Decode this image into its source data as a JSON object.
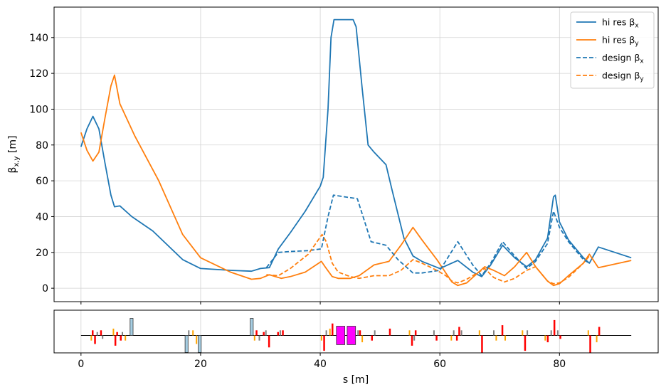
{
  "chart_data": {
    "type": "line",
    "xlabel": "s [m]",
    "ylabel": "β",
    "ylabel_sub": "x,y",
    "ylabel_unit": " [m]",
    "xlim": [
      -4.5,
      96.5
    ],
    "ylim": [
      -7.5,
      157
    ],
    "xticks": [
      0,
      20,
      40,
      60,
      80
    ],
    "yticks": [
      0,
      20,
      40,
      60,
      80,
      100,
      120,
      140
    ],
    "grid": true,
    "legend_position": "top-right",
    "series": [
      {
        "name": "hi res β",
        "name_sub": "x",
        "color": "#1f77b4",
        "dash": "solid",
        "x": [
          0,
          1,
          2,
          3,
          4,
          5,
          5.6,
          6.5,
          8.5,
          12,
          17,
          20,
          25,
          28.5,
          30,
          31.5,
          33,
          35,
          37.5,
          40,
          40.5,
          41.3,
          41.8,
          42.3,
          45.5,
          46,
          47,
          48,
          49,
          51,
          52,
          54,
          55.5,
          57,
          60,
          63,
          65.5,
          67,
          68.5,
          70.5,
          72.5,
          74.5,
          76,
          78,
          79,
          79.3,
          80,
          81.5,
          84,
          85,
          86.5,
          92
        ],
        "y": [
          79,
          89,
          96,
          89,
          70,
          52,
          45.5,
          46,
          40,
          32,
          16,
          11,
          10,
          9.5,
          11,
          11.5,
          22,
          31,
          43,
          57,
          62,
          100,
          140,
          150,
          150,
          146,
          112,
          80,
          76,
          69,
          55,
          28,
          18,
          15,
          11,
          15.5,
          9,
          6.5,
          13,
          24,
          17,
          12,
          16,
          28,
          51,
          52,
          37,
          27,
          17,
          14,
          23,
          17
        ]
      },
      {
        "name": "hi res β",
        "name_sub": "y",
        "color": "#ff7f0e",
        "dash": "solid",
        "x": [
          0,
          1,
          2,
          3,
          4,
          5,
          5.6,
          6.5,
          9,
          13,
          17,
          20,
          25,
          28.5,
          30,
          31.5,
          32.5,
          33.5,
          35,
          37.5,
          40.2,
          40.8,
          42,
          43,
          45,
          46.5,
          49,
          51.5,
          53.5,
          55.5,
          57,
          59.5,
          61,
          62,
          63,
          64.5,
          66.5,
          67.5,
          69,
          70.8,
          72.5,
          74.5,
          76,
          78,
          79,
          80,
          81.5,
          84,
          85,
          86.5,
          92
        ],
        "y": [
          87,
          77,
          71,
          76,
          95,
          113,
          119,
          103,
          85,
          60,
          30,
          17,
          9,
          5,
          5.5,
          7.5,
          6.5,
          5.5,
          6.5,
          9,
          15,
          12,
          6.5,
          5.5,
          5.5,
          7,
          13,
          15,
          24,
          34,
          27,
          16,
          8.5,
          3.5,
          1.5,
          3,
          9,
          12,
          10,
          7,
          12,
          20,
          12,
          4,
          1.5,
          2.5,
          7,
          14,
          19,
          11.5,
          15.5
        ]
      },
      {
        "name": "design β",
        "name_sub": "x",
        "color": "#1f77b4",
        "dash": "dashed",
        "x": [
          31,
          33,
          35,
          38,
          40.2,
          41.3,
          42.2,
          46.2,
          48.5,
          51,
          53,
          55.5,
          57,
          60,
          63,
          65.5,
          67,
          68.5,
          70.5,
          72.5,
          74.5,
          76,
          78,
          79,
          80,
          81.5,
          84,
          85
        ],
        "y": [
          11.5,
          20,
          20.5,
          21,
          22,
          40,
          52,
          50,
          26,
          24,
          16,
          8.5,
          8.5,
          10,
          26,
          13,
          7,
          14,
          26,
          18,
          11,
          15,
          25,
          43,
          34,
          26,
          16,
          14
        ]
      },
      {
        "name": "design β",
        "name_sub": "y",
        "color": "#ff7f0e",
        "dash": "dashed",
        "x": [
          31,
          33,
          35,
          38,
          40.3,
          41,
          42,
          43,
          45,
          46.5,
          49,
          51.5,
          53.5,
          55.5,
          57,
          59.5,
          61,
          62,
          63,
          64.5,
          66.5,
          67.5,
          69,
          70.8,
          72.5,
          74.5,
          76,
          78,
          79,
          80,
          81.5,
          84,
          85
        ],
        "y": [
          7.5,
          7,
          11,
          19,
          30,
          26,
          14,
          9,
          6.5,
          5.5,
          7,
          7,
          10,
          16,
          14,
          10,
          7,
          4,
          3,
          5,
          9,
          11,
          6,
          3.5,
          5.5,
          10,
          12,
          4,
          2.5,
          3,
          6,
          14,
          18
        ]
      }
    ],
    "lattice": {
      "beamline": {
        "x_start": 0,
        "x_end": 92
      },
      "elements": [
        {
          "x": 1.8,
          "w": 0.3,
          "h": 0.3,
          "color": "#ff0000"
        },
        {
          "x": 2.2,
          "w": 0.3,
          "h": -0.5,
          "color": "#ff0000"
        },
        {
          "x": 1.6,
          "w": 0.2,
          "h": -0.3,
          "color": "#ffa500"
        },
        {
          "x": 2.6,
          "w": 0.2,
          "h": 0.2,
          "color": "#808080"
        },
        {
          "x": 3.2,
          "w": 0.3,
          "h": 0.3,
          "color": "#ff0000"
        },
        {
          "x": 3.5,
          "w": 0.2,
          "h": -0.2,
          "color": "#808080"
        },
        {
          "x": 5.3,
          "w": 0.2,
          "h": 0.4,
          "color": "#ffa500"
        },
        {
          "x": 5.6,
          "w": 0.3,
          "h": -0.6,
          "color": "#ff0000"
        },
        {
          "x": 5.9,
          "w": 0.3,
          "h": 0.2,
          "color": "#ff0000"
        },
        {
          "x": 6.5,
          "w": 0.3,
          "h": -0.3,
          "color": "#ff0000"
        },
        {
          "x": 6.8,
          "w": 0.2,
          "h": 0.2,
          "color": "#808080"
        },
        {
          "x": 7.3,
          "w": 0.2,
          "h": -0.3,
          "color": "#ffa500"
        },
        {
          "x": 8.2,
          "w": 0.5,
          "h": 1.0,
          "color": "#a6cee3"
        },
        {
          "x": 17.4,
          "w": 0.5,
          "h": -1.0,
          "color": "#a6cee3"
        },
        {
          "x": 17.9,
          "w": 0.2,
          "h": 0.3,
          "color": "#808080"
        },
        {
          "x": 18.6,
          "w": 0.2,
          "h": 0.3,
          "color": "#ffa500"
        },
        {
          "x": 19.2,
          "w": 0.2,
          "h": -0.5,
          "color": "#ffa500"
        },
        {
          "x": 19.6,
          "w": 0.5,
          "h": -1.0,
          "color": "#a6cee3"
        },
        {
          "x": 28.3,
          "w": 0.5,
          "h": 1.0,
          "color": "#a6cee3"
        },
        {
          "x": 28.9,
          "w": 0.2,
          "h": -0.3,
          "color": "#ffa500"
        },
        {
          "x": 29.2,
          "w": 0.3,
          "h": 0.3,
          "color": "#ff0000"
        },
        {
          "x": 29.7,
          "w": 0.2,
          "h": -0.3,
          "color": "#808080"
        },
        {
          "x": 30.4,
          "w": 0.3,
          "h": 0.2,
          "color": "#ff0000"
        },
        {
          "x": 30.8,
          "w": 0.2,
          "h": 0.3,
          "color": "#808080"
        },
        {
          "x": 31.3,
          "w": 0.3,
          "h": -0.7,
          "color": "#ff0000"
        },
        {
          "x": 32.8,
          "w": 0.3,
          "h": 0.2,
          "color": "#ff0000"
        },
        {
          "x": 33.2,
          "w": 0.2,
          "h": 0.3,
          "color": "#808080"
        },
        {
          "x": 33.6,
          "w": 0.3,
          "h": 0.3,
          "color": "#ff0000"
        },
        {
          "x": 40.1,
          "w": 0.2,
          "h": -0.3,
          "color": "#ffa500"
        },
        {
          "x": 40.5,
          "w": 0.3,
          "h": -0.9,
          "color": "#ff0000"
        },
        {
          "x": 40.9,
          "w": 0.2,
          "h": 0.3,
          "color": "#808080"
        },
        {
          "x": 41.5,
          "w": 0.2,
          "h": 0.4,
          "color": "#ffa500"
        },
        {
          "x": 41.9,
          "w": 0.3,
          "h": 0.7,
          "color": "#ff0000"
        },
        {
          "x": 42.7,
          "w": 1.4,
          "h": 0.9,
          "color": "#ff00ff",
          "center": true
        },
        {
          "x": 44.5,
          "w": 1.4,
          "h": 0.9,
          "color": "#ff00ff",
          "center": true
        },
        {
          "x": 46.2,
          "w": 0.2,
          "h": 0.3,
          "color": "#808080"
        },
        {
          "x": 46.5,
          "w": 0.3,
          "h": 0.3,
          "color": "#ff0000"
        },
        {
          "x": 46.9,
          "w": 0.2,
          "h": -0.4,
          "color": "#ffa500"
        },
        {
          "x": 48.5,
          "w": 0.3,
          "h": -0.3,
          "color": "#ff0000"
        },
        {
          "x": 49.0,
          "w": 0.2,
          "h": 0.3,
          "color": "#808080"
        },
        {
          "x": 51.5,
          "w": 0.3,
          "h": 0.4,
          "color": "#ff0000"
        },
        {
          "x": 54.8,
          "w": 0.2,
          "h": 0.3,
          "color": "#ffa500"
        },
        {
          "x": 55.2,
          "w": 0.3,
          "h": -0.6,
          "color": "#ff0000"
        },
        {
          "x": 55.6,
          "w": 0.2,
          "h": -0.3,
          "color": "#808080"
        },
        {
          "x": 55.8,
          "w": 0.3,
          "h": 0.3,
          "color": "#ff0000"
        },
        {
          "x": 58.9,
          "w": 0.2,
          "h": 0.3,
          "color": "#808080"
        },
        {
          "x": 59.3,
          "w": 0.3,
          "h": -0.3,
          "color": "#ff0000"
        },
        {
          "x": 61.8,
          "w": 0.2,
          "h": -0.3,
          "color": "#ffa500"
        },
        {
          "x": 62.2,
          "w": 0.2,
          "h": 0.3,
          "color": "#808080"
        },
        {
          "x": 62.7,
          "w": 0.3,
          "h": -0.3,
          "color": "#ff0000"
        },
        {
          "x": 63.1,
          "w": 0.3,
          "h": 0.5,
          "color": "#ff0000"
        },
        {
          "x": 63.5,
          "w": 0.2,
          "h": 0.3,
          "color": "#808080"
        },
        {
          "x": 66.5,
          "w": 0.2,
          "h": 0.3,
          "color": "#ffa500"
        },
        {
          "x": 66.9,
          "w": 0.3,
          "h": -1.0,
          "color": "#ff0000"
        },
        {
          "x": 68.9,
          "w": 0.2,
          "h": 0.3,
          "color": "#808080"
        },
        {
          "x": 69.3,
          "w": 0.2,
          "h": -0.3,
          "color": "#ffa500"
        },
        {
          "x": 70.3,
          "w": 0.3,
          "h": 0.6,
          "color": "#ff0000"
        },
        {
          "x": 70.8,
          "w": 0.2,
          "h": -0.3,
          "color": "#ffa500"
        },
        {
          "x": 73.7,
          "w": 0.2,
          "h": 0.3,
          "color": "#ffa500"
        },
        {
          "x": 74.1,
          "w": 0.3,
          "h": -0.9,
          "color": "#ff0000"
        },
        {
          "x": 74.5,
          "w": 0.2,
          "h": 0.3,
          "color": "#808080"
        },
        {
          "x": 77.5,
          "w": 0.2,
          "h": -0.3,
          "color": "#ffa500"
        },
        {
          "x": 77.9,
          "w": 0.3,
          "h": -0.4,
          "color": "#ff0000"
        },
        {
          "x": 78.5,
          "w": 0.2,
          "h": 0.3,
          "color": "#808080"
        },
        {
          "x": 79.0,
          "w": 0.3,
          "h": 0.9,
          "color": "#ff0000"
        },
        {
          "x": 79.6,
          "w": 0.2,
          "h": 0.3,
          "color": "#808080"
        },
        {
          "x": 80.0,
          "w": 0.3,
          "h": -0.2,
          "color": "#ff0000"
        },
        {
          "x": 84.7,
          "w": 0.2,
          "h": 0.3,
          "color": "#ffa500"
        },
        {
          "x": 85.0,
          "w": 0.3,
          "h": -1.0,
          "color": "#ff0000"
        },
        {
          "x": 86.1,
          "w": 0.2,
          "h": -0.4,
          "color": "#ffa500"
        },
        {
          "x": 86.5,
          "w": 0.3,
          "h": 0.5,
          "color": "#ff0000"
        }
      ]
    }
  }
}
